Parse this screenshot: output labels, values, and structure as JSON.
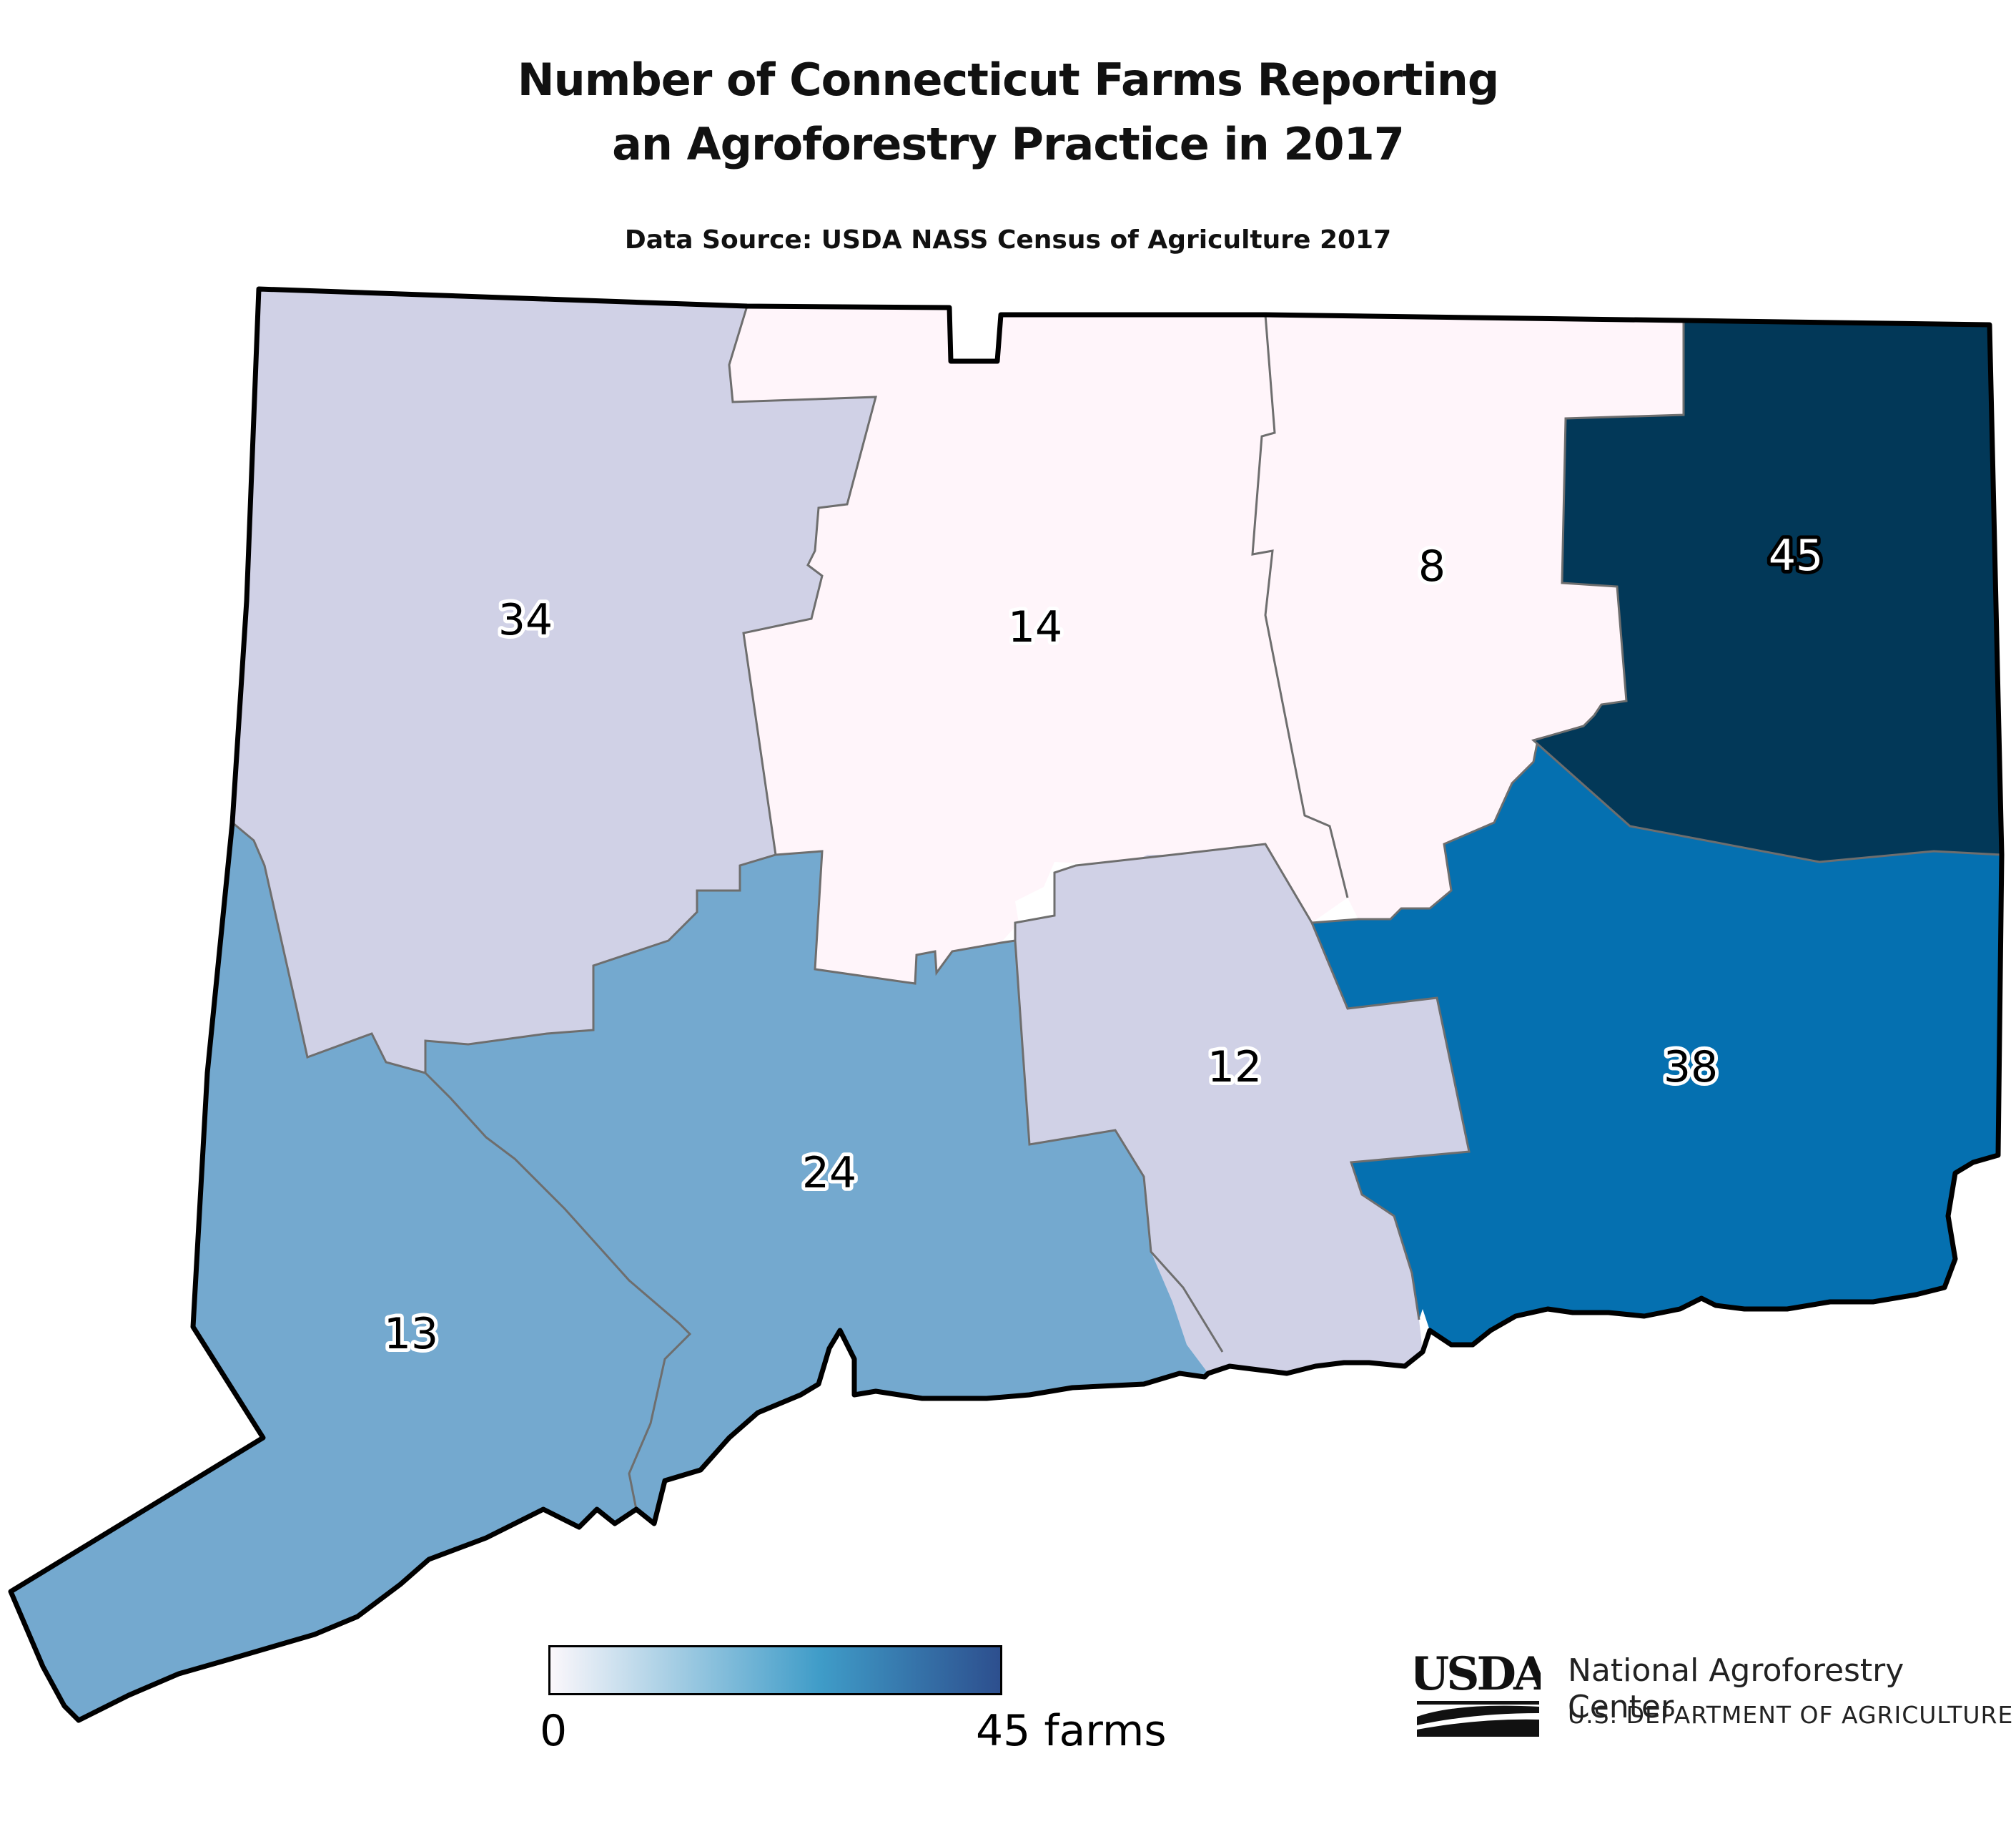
{
  "title_line1": "Number of Connecticut Farms Reporting",
  "title_line2": "an Agroforestry Practice in 2017",
  "subtitle": "Data Source: USDA NASS Census of Agriculture 2017",
  "colors": {
    "state_outline": "#000000",
    "county_border": "#6e6e6e",
    "scale_0": "#fff5fa",
    "scale_low": "#d0d1e6",
    "scale_mid": "#74a9cf",
    "scale_high": "#0570b0",
    "scale_max": "#023858"
  },
  "counties": [
    {
      "id": "litchfield",
      "value": "34",
      "fill": "#d0d1e6",
      "label_color": "#000000"
    },
    {
      "id": "hartford",
      "value": "14",
      "fill": "#fff5fa",
      "label_color": "#000000"
    },
    {
      "id": "tolland",
      "value": "8",
      "fill": "#fff5fa",
      "label_color": "#000000"
    },
    {
      "id": "windham",
      "value": "45",
      "fill": "#023858",
      "label_color": "#ffffff"
    },
    {
      "id": "fairfield",
      "value": "13",
      "fill": "#74a9cf",
      "label_color": "#000000"
    },
    {
      "id": "new-haven",
      "value": "24",
      "fill": "#74a9cf",
      "label_color": "#000000"
    },
    {
      "id": "middlesex",
      "value": "12",
      "fill": "#d0d1e6",
      "label_color": "#000000"
    },
    {
      "id": "new-london",
      "value": "38",
      "fill": "#0570b0",
      "label_color": "#000000"
    }
  ],
  "legend": {
    "min_label": "0",
    "max_label": "45 farms",
    "gradient_start": "#fbf7fb",
    "gradient_mid": "#3f9cc8",
    "gradient_end": "#2d4f8e"
  },
  "logo": {
    "mark_text": "USDA",
    "org_name": "National Agroforestry Center",
    "department": "U.S. DEPARTMENT OF AGRICULTURE"
  }
}
